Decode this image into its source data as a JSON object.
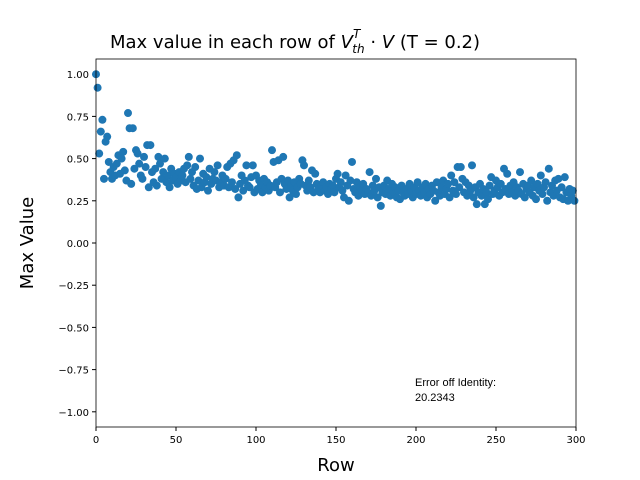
{
  "chart_data": {
    "type": "scatter",
    "title": [
      "Max value in each row of ",
      "V",
      "T",
      "th",
      " · ",
      "V",
      " (T = 0.2)"
    ],
    "x_label": "Row",
    "y_label": "Max Value",
    "annotation": [
      "Error off Identity:",
      "20.2343"
    ],
    "color": "#1f77b4",
    "xlim": [
      0,
      300
    ],
    "xticks": [
      0,
      50,
      100,
      150,
      200,
      250,
      300
    ],
    "ylim": [
      -1.09,
      1.09
    ],
    "yticks": [
      {
        "value": -1,
        "label": "−1.00"
      },
      {
        "value": -0.75,
        "label": "−0.75"
      },
      {
        "value": -0.5,
        "label": "−0.50"
      },
      {
        "value": -0.25,
        "label": "−0.25"
      },
      {
        "value": 0,
        "label": "0.00"
      },
      0.25,
      {
        "value": 0.5,
        "label": "0.50"
      },
      0.75,
      {
        "value": 1,
        "label": "1.00"
      }
    ],
    "x": [
      0,
      1,
      2,
      3,
      4,
      5,
      6,
      7,
      8,
      9,
      10,
      11,
      12,
      13,
      14,
      15,
      16,
      17,
      18,
      19,
      20,
      21,
      22,
      23,
      24,
      25,
      26,
      27,
      28,
      29,
      30,
      31,
      32,
      33,
      34,
      35,
      36,
      37,
      38,
      39,
      40,
      41,
      42,
      43,
      44,
      45,
      46,
      47,
      48,
      49,
      50,
      51,
      52,
      53,
      54,
      55,
      56,
      57,
      58,
      59,
      60,
      61,
      62,
      63,
      64,
      65,
      66,
      67,
      68,
      69,
      70,
      71,
      72,
      73,
      74,
      75,
      76,
      77,
      78,
      79,
      80,
      81,
      82,
      83,
      84,
      85,
      86,
      87,
      88,
      89,
      90,
      91,
      92,
      93,
      94,
      95,
      96,
      97,
      98,
      99,
      100,
      101,
      102,
      103,
      104,
      105,
      106,
      107,
      108,
      109,
      110,
      111,
      112,
      113,
      114,
      115,
      116,
      117,
      118,
      119,
      120,
      121,
      122,
      123,
      124,
      125,
      126,
      127,
      128,
      129,
      130,
      131,
      132,
      133,
      134,
      135,
      136,
      137,
      138,
      139,
      140,
      141,
      142,
      143,
      144,
      145,
      146,
      147,
      148,
      149,
      150,
      151,
      152,
      153,
      154,
      155,
      156,
      157,
      158,
      159,
      160,
      161,
      162,
      163,
      164,
      165,
      166,
      167,
      168,
      169,
      170,
      171,
      172,
      173,
      174,
      175,
      176,
      177,
      178,
      179,
      180,
      181,
      182,
      183,
      184,
      185,
      186,
      187,
      188,
      189,
      190,
      191,
      192,
      193,
      194,
      195,
      196,
      197,
      198,
      199,
      200,
      201,
      202,
      203,
      204,
      205,
      206,
      207,
      208,
      209,
      210,
      211,
      212,
      213,
      214,
      215,
      216,
      217,
      218,
      219,
      220,
      221,
      222,
      223,
      224,
      225,
      226,
      227,
      228,
      229,
      230,
      231,
      232,
      233,
      234,
      235,
      236,
      237,
      238,
      239,
      240,
      241,
      242,
      243,
      244,
      245,
      246,
      247,
      248,
      249,
      250,
      251,
      252,
      253,
      254,
      255,
      256,
      257,
      258,
      259,
      260,
      261,
      262,
      263,
      264,
      265,
      266,
      267,
      268,
      269,
      270,
      271,
      272,
      273,
      274,
      275,
      276,
      277,
      278,
      279,
      280,
      281,
      282,
      283,
      284,
      285,
      286,
      287,
      288,
      289,
      290,
      291,
      292,
      293,
      294,
      295,
      296,
      297,
      298,
      299
    ],
    "values": [
      1.0,
      0.92,
      0.53,
      0.66,
      0.73,
      0.38,
      0.6,
      0.63,
      0.48,
      0.42,
      0.38,
      0.45,
      0.4,
      0.47,
      0.52,
      0.41,
      0.5,
      0.54,
      0.43,
      0.37,
      0.77,
      0.68,
      0.35,
      0.68,
      0.44,
      0.55,
      0.53,
      0.47,
      0.4,
      0.38,
      0.51,
      0.45,
      0.58,
      0.33,
      0.58,
      0.42,
      0.36,
      0.44,
      0.34,
      0.51,
      0.47,
      0.38,
      0.42,
      0.5,
      0.36,
      0.4,
      0.33,
      0.44,
      0.37,
      0.41,
      0.39,
      0.35,
      0.42,
      0.37,
      0.4,
      0.44,
      0.36,
      0.46,
      0.51,
      0.38,
      0.42,
      0.34,
      0.45,
      0.32,
      0.37,
      0.5,
      0.33,
      0.41,
      0.36,
      0.39,
      0.31,
      0.44,
      0.35,
      0.38,
      0.42,
      0.37,
      0.46,
      0.33,
      0.36,
      0.4,
      0.34,
      0.38,
      0.45,
      0.33,
      0.47,
      0.36,
      0.49,
      0.32,
      0.52,
      0.27,
      0.35,
      0.4,
      0.31,
      0.37,
      0.46,
      0.34,
      0.33,
      0.39,
      0.46,
      0.3,
      0.4,
      0.32,
      0.37,
      0.34,
      0.3,
      0.38,
      0.33,
      0.36,
      0.31,
      0.34,
      0.55,
      0.48,
      0.33,
      0.36,
      0.49,
      0.3,
      0.38,
      0.51,
      0.35,
      0.32,
      0.37,
      0.27,
      0.34,
      0.31,
      0.36,
      0.29,
      0.33,
      0.38,
      0.35,
      0.49,
      0.46,
      0.34,
      0.31,
      0.37,
      0.33,
      0.43,
      0.3,
      0.41,
      0.35,
      0.32,
      0.3,
      0.34,
      0.36,
      0.31,
      0.33,
      0.29,
      0.35,
      0.32,
      0.34,
      0.3,
      0.38,
      0.41,
      0.33,
      0.36,
      0.31,
      0.27,
      0.4,
      0.34,
      0.25,
      0.37,
      0.48,
      0.32,
      0.3,
      0.36,
      0.28,
      0.33,
      0.31,
      0.35,
      0.29,
      0.32,
      0.3,
      0.42,
      0.28,
      0.34,
      0.31,
      0.38,
      0.27,
      0.33,
      0.22,
      0.3,
      0.34,
      0.29,
      0.37,
      0.32,
      0.28,
      0.35,
      0.3,
      0.33,
      0.27,
      0.31,
      0.26,
      0.34,
      0.3,
      0.28,
      0.32,
      0.29,
      0.35,
      0.31,
      0.27,
      0.33,
      0.29,
      0.36,
      0.31,
      0.28,
      0.33,
      0.3,
      0.35,
      0.27,
      0.32,
      0.29,
      0.34,
      0.31,
      0.25,
      0.36,
      0.3,
      0.28,
      0.33,
      0.37,
      0.29,
      0.32,
      0.35,
      0.27,
      0.4,
      0.31,
      0.36,
      0.29,
      0.45,
      0.33,
      0.45,
      0.38,
      0.3,
      0.36,
      0.28,
      0.34,
      0.31,
      0.46,
      0.27,
      0.33,
      0.23,
      0.3,
      0.35,
      0.28,
      0.32,
      0.23,
      0.3,
      0.26,
      0.34,
      0.39,
      0.29,
      0.31,
      0.37,
      0.33,
      0.28,
      0.35,
      0.3,
      0.44,
      0.32,
      0.41,
      0.29,
      0.34,
      0.3,
      0.36,
      0.28,
      0.33,
      0.31,
      0.42,
      0.29,
      0.35,
      0.27,
      0.32,
      0.34,
      0.3,
      0.37,
      0.28,
      0.33,
      0.26,
      0.35,
      0.31,
      0.4,
      0.29,
      0.33,
      0.36,
      0.25,
      0.44,
      0.3,
      0.34,
      0.28,
      0.37,
      0.31,
      0.38,
      0.27,
      0.33,
      0.26,
      0.39,
      0.3,
      0.25,
      0.32,
      0.28,
      0.31,
      0.25
    ]
  }
}
